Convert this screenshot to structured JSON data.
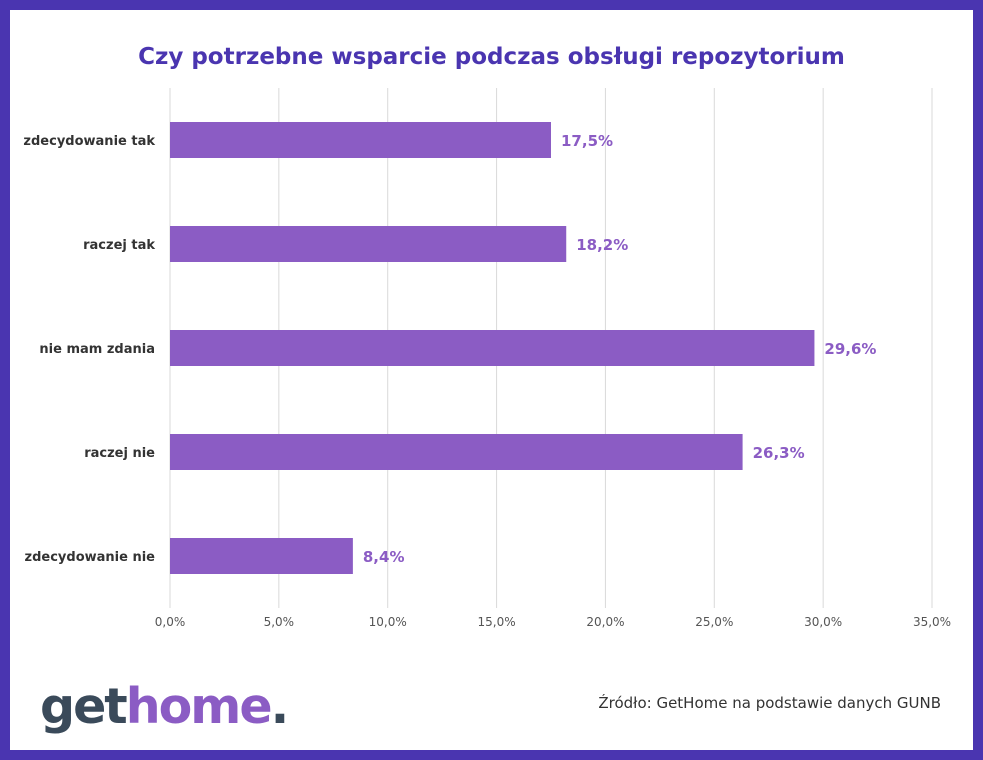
{
  "chart_data": {
    "type": "bar",
    "orientation": "horizontal",
    "title": "Czy potrzebne wsparcie podczas obsługi repozytorium",
    "categories": [
      "zdecydowanie tak",
      "raczej tak",
      "nie mam zdania",
      "raczej nie",
      "zdecydowanie nie"
    ],
    "values": [
      17.5,
      18.2,
      29.6,
      26.3,
      8.4
    ],
    "value_labels": [
      "17,5%",
      "18,2%",
      "29,6%",
      "26,3%",
      "8,4%"
    ],
    "xlim": [
      0,
      35
    ],
    "xticks": [
      0,
      5,
      10,
      15,
      20,
      25,
      30,
      35
    ],
    "xtick_labels": [
      "0,0%",
      "5,0%",
      "10,0%",
      "15,0%",
      "20,0%",
      "25,0%",
      "30,0%",
      "35,0%"
    ],
    "grid": true,
    "bar_color": "#8b5cc4",
    "label_color": "#8b5cc4"
  },
  "logo": {
    "get": "get",
    "home": "home",
    "dot": "."
  },
  "source": "Źródło: GetHome na podstawie danych GUNB",
  "colors": {
    "frame": "#4a35b0",
    "title": "#4a35b0",
    "logo_dark": "#3a4a5a",
    "logo_accent": "#8b5cc4"
  }
}
